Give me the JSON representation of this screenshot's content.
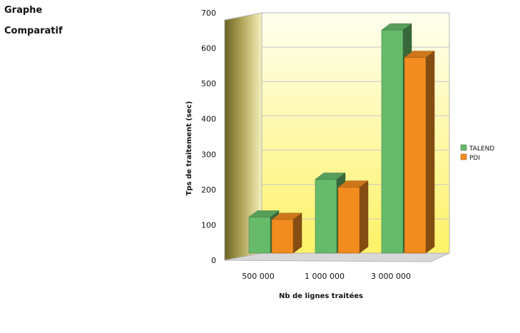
{
  "page": {
    "heading_line1": "Graphe",
    "heading_line2": "Comparatif"
  },
  "chart_data": {
    "type": "bar",
    "title": "",
    "xlabel": "Nb de lignes traitées",
    "ylabel": "Tps de traitement (sec)",
    "categories": [
      "500 000",
      "1 000 000",
      "3 000 000"
    ],
    "ylim": [
      0,
      700
    ],
    "yticks": [
      0,
      100,
      200,
      300,
      400,
      500,
      600,
      700
    ],
    "style": "3d",
    "grid": true,
    "legend_position": "right",
    "series": [
      {
        "name": "TALEND",
        "values": [
          105,
          215,
          650
        ],
        "color": "#66bb6a"
      },
      {
        "name": "PDI",
        "values": [
          98,
          192,
          570
        ],
        "color": "#f28c1e"
      }
    ]
  }
}
